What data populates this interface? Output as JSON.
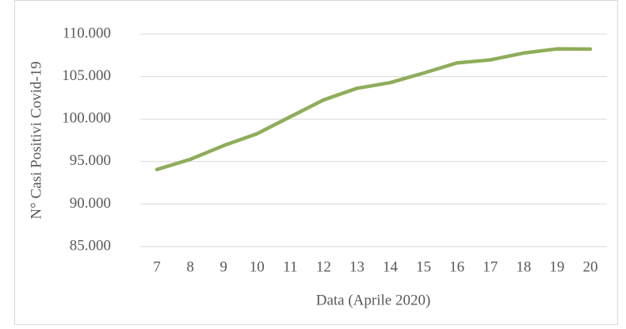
{
  "chart_data": {
    "type": "line",
    "y_label": "N° Casi Positivi Covid-19",
    "x_label": "Data (Aprile 2020)",
    "categories": [
      "7",
      "8",
      "9",
      "10",
      "11",
      "12",
      "13",
      "14",
      "15",
      "16",
      "17",
      "18",
      "19",
      "20"
    ],
    "series": [
      {
        "name": "Casi positivi",
        "color": "#8fad5a",
        "values": [
          94067,
          95262,
          96877,
          98273,
          100269,
          102253,
          103616,
          104291,
          105418,
          106607,
          106962,
          107771,
          108257,
          108237
        ]
      }
    ],
    "ylim": [
      85000,
      110000
    ],
    "yticks": [
      {
        "value": 85000,
        "label": "85.000"
      },
      {
        "value": 90000,
        "label": "90.000"
      },
      {
        "value": 95000,
        "label": "95.000"
      },
      {
        "value": 100000,
        "label": "100.000"
      },
      {
        "value": 105000,
        "label": "105.000"
      },
      {
        "value": 110000,
        "label": "110.000"
      }
    ],
    "grid": true
  }
}
